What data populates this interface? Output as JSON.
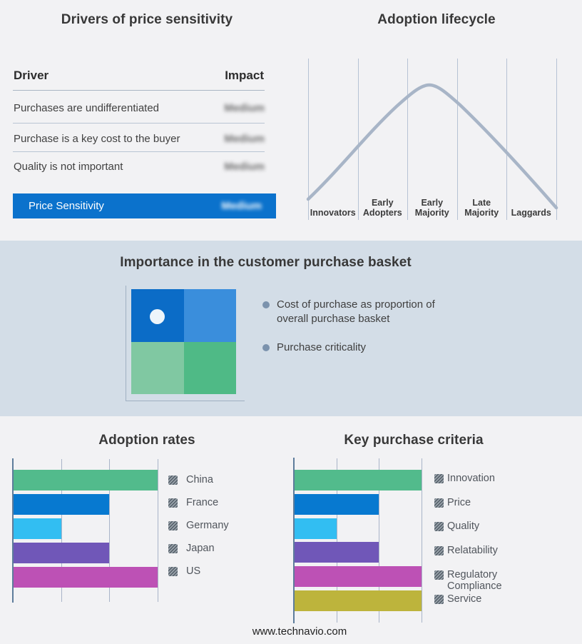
{
  "page": {
    "background": "#f2f2f4",
    "band_background": "#d3dde7"
  },
  "drivers_table": {
    "title": "Drivers of price sensitivity",
    "columns": {
      "driver": "Driver",
      "impact": "Impact"
    },
    "rows": [
      {
        "driver": "Purchases are undifferentiated",
        "impact": "Medium",
        "impact_blurred": true
      },
      {
        "driver": "Purchase is a key cost to the buyer",
        "impact": "Medium",
        "impact_blurred": true
      },
      {
        "driver": "Quality is not important",
        "impact": "Medium",
        "impact_blurred": true
      }
    ],
    "highlight_row": {
      "label": "Price Sensitivity",
      "impact": "Medium",
      "impact_blurred": true,
      "background": "#0b72cc"
    }
  },
  "lifecycle": {
    "title": "Adoption lifecycle",
    "stages": [
      "Innovators",
      "Early Adopters",
      "Early Majority",
      "Late Majority",
      "Laggards"
    ],
    "curve_color": "#a8b5c7",
    "gridline_color": "#b6c2d4"
  },
  "basket": {
    "title": "Importance in the customer purchase basket",
    "bullets": [
      "Cost of purchase as proportion of overall purchase basket",
      "Purchase criticality"
    ],
    "quadrant_colors": [
      "#0b6cc7",
      "#3a8edc",
      "#80c8a2",
      "#4fba86"
    ],
    "marker_dot_color": "#edf5fb",
    "bullet_marker_color": "#7b92ad"
  },
  "chart_data": [
    {
      "type": "bar",
      "orientation": "horizontal",
      "title": "Adoption rates",
      "categories": [
        "China",
        "France",
        "Germany",
        "Japan",
        "US"
      ],
      "values": [
        3,
        2,
        1,
        2,
        3
      ],
      "colors": [
        "#52bb8c",
        "#0779d0",
        "#32bef2",
        "#7057b8",
        "#bd51b5"
      ],
      "xlim": [
        0,
        3
      ],
      "gridlines": [
        1,
        2,
        3
      ],
      "tick_labels_shown": false,
      "legend_position": "right"
    },
    {
      "type": "bar",
      "orientation": "horizontal",
      "title": "Key purchase criteria",
      "categories": [
        "Innovation",
        "Price",
        "Quality",
        "Relatability",
        "Regulatory Compliance",
        "Service"
      ],
      "values": [
        3,
        2,
        1,
        2,
        3,
        3
      ],
      "colors": [
        "#52bb8c",
        "#0779d0",
        "#32bef2",
        "#7057b8",
        "#bd51b5",
        "#bdb43c"
      ],
      "xlim": [
        0,
        3
      ],
      "gridlines": [
        1,
        2,
        3
      ],
      "tick_labels_shown": false,
      "legend_position": "right"
    }
  ],
  "footer": {
    "website": "www.technavio.com"
  }
}
